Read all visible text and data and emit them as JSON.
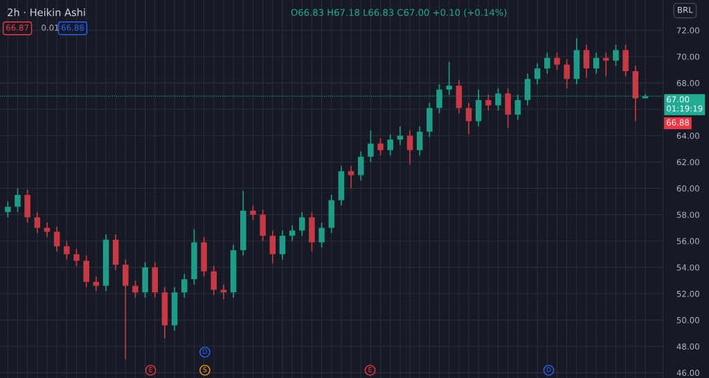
{
  "chart_data": {
    "type": "candlestick",
    "title": "2h · Heikin Ashi",
    "subtitle": "O66.83 H67.18 L66.83 C67.00 +0.10 (+0.14%)",
    "annotations": [
      "66.87",
      "0.01",
      "66.88",
      "BRL",
      "66.88",
      "E",
      "D",
      "S",
      "E",
      "D"
    ],
    "categories": [
      null,
      null,
      null,
      null,
      null,
      null,
      null,
      null,
      null,
      null,
      null,
      null,
      null,
      null,
      null,
      null,
      null,
      null,
      null,
      null,
      null,
      null,
      null,
      null,
      null,
      null,
      null,
      null,
      null,
      null,
      null,
      null,
      null,
      null,
      null,
      null,
      null,
      null,
      null,
      null,
      null,
      null,
      null,
      null,
      null,
      null,
      null,
      null,
      null,
      null,
      null,
      null,
      null,
      null,
      null,
      null,
      null,
      null,
      null,
      null,
      null,
      null,
      null,
      null,
      null,
      null
    ],
    "ohlc": [
      [
        58.2,
        59.0,
        57.8,
        58.6
      ],
      [
        58.6,
        60.0,
        58.2,
        59.5
      ],
      [
        59.5,
        59.9,
        57.4,
        57.8
      ],
      [
        57.8,
        58.2,
        56.6,
        57.0
      ],
      [
        57.0,
        57.4,
        56.3,
        56.7
      ],
      [
        56.7,
        57.1,
        55.2,
        55.6
      ],
      [
        55.6,
        56.0,
        54.6,
        55.0
      ],
      [
        55.0,
        55.4,
        54.1,
        54.5
      ],
      [
        54.5,
        54.9,
        52.5,
        52.9
      ],
      [
        52.9,
        53.3,
        52.2,
        52.6
      ],
      [
        52.6,
        56.5,
        52.2,
        56.1
      ],
      [
        56.1,
        56.5,
        53.8,
        54.2
      ],
      [
        54.2,
        54.6,
        47.0,
        52.6
      ],
      [
        52.6,
        53.0,
        51.7,
        52.1
      ],
      [
        52.1,
        54.4,
        51.7,
        54.0
      ],
      [
        54.0,
        54.4,
        51.7,
        52.1
      ],
      [
        52.1,
        52.5,
        48.6,
        49.6
      ],
      [
        49.6,
        52.5,
        49.2,
        52.1
      ],
      [
        52.1,
        53.5,
        51.7,
        53.1
      ],
      [
        53.1,
        56.9,
        52.7,
        55.9
      ],
      [
        55.9,
        56.3,
        53.3,
        53.7
      ],
      [
        53.7,
        54.1,
        51.9,
        52.3
      ],
      [
        52.3,
        52.7,
        51.6,
        52.1
      ],
      [
        52.1,
        55.7,
        51.7,
        55.3
      ],
      [
        55.3,
        59.8,
        54.9,
        58.3
      ],
      [
        58.3,
        58.7,
        57.6,
        58.0
      ],
      [
        58.0,
        58.4,
        56.0,
        56.4
      ],
      [
        56.4,
        56.8,
        54.3,
        55.0
      ],
      [
        55.0,
        56.8,
        54.6,
        56.4
      ],
      [
        56.4,
        57.2,
        56.0,
        56.8
      ],
      [
        56.8,
        58.2,
        56.4,
        57.8
      ],
      [
        57.8,
        58.2,
        55.2,
        55.9
      ],
      [
        55.9,
        57.4,
        55.5,
        57.0
      ],
      [
        57.0,
        59.5,
        56.6,
        59.1
      ],
      [
        59.1,
        61.7,
        58.7,
        61.3
      ],
      [
        61.3,
        61.7,
        60.0,
        61.0
      ],
      [
        61.0,
        62.8,
        60.6,
        62.4
      ],
      [
        62.4,
        64.4,
        62.0,
        63.4
      ],
      [
        63.4,
        63.8,
        62.5,
        62.9
      ],
      [
        62.9,
        64.1,
        62.5,
        63.7
      ],
      [
        63.7,
        64.7,
        63.3,
        64.0
      ],
      [
        64.0,
        64.4,
        61.8,
        62.9
      ],
      [
        62.9,
        64.7,
        62.5,
        64.3
      ],
      [
        64.3,
        66.5,
        63.9,
        66.1
      ],
      [
        66.1,
        67.9,
        65.7,
        67.5
      ],
      [
        67.5,
        69.6,
        67.1,
        67.8
      ],
      [
        67.8,
        68.2,
        65.7,
        66.1
      ],
      [
        66.1,
        66.5,
        64.1,
        65.1
      ],
      [
        65.1,
        67.5,
        64.7,
        66.7
      ],
      [
        66.7,
        67.1,
        65.9,
        66.3
      ],
      [
        66.3,
        67.6,
        65.9,
        67.2
      ],
      [
        67.2,
        67.6,
        64.6,
        65.6
      ],
      [
        65.6,
        67.1,
        65.2,
        66.7
      ],
      [
        66.7,
        68.7,
        66.3,
        68.3
      ],
      [
        68.3,
        69.5,
        67.9,
        69.1
      ],
      [
        69.1,
        70.3,
        68.7,
        69.9
      ],
      [
        69.9,
        70.3,
        69.0,
        69.4
      ],
      [
        69.4,
        69.8,
        67.6,
        68.3
      ],
      [
        68.3,
        71.4,
        67.9,
        70.5
      ],
      [
        70.5,
        70.9,
        68.4,
        69.1
      ],
      [
        69.1,
        70.3,
        68.7,
        69.9
      ],
      [
        69.9,
        70.3,
        68.5,
        69.7
      ],
      [
        69.7,
        70.9,
        69.3,
        70.5
      ],
      [
        70.5,
        70.9,
        68.5,
        68.9
      ],
      [
        68.9,
        69.3,
        65.1,
        66.83
      ],
      [
        66.83,
        67.18,
        66.83,
        67.0
      ]
    ],
    "colors": [
      "#1f9c87",
      "#1f9c87",
      "#c73a45",
      "#c73a45",
      "#c73a45",
      "#c73a45",
      "#c73a45",
      "#c73a45",
      "#c73a45",
      "#c73a45",
      "#1f9c87",
      "#c73a45",
      "#c73a45",
      "#c73a45",
      "#1f9c87",
      "#c73a45",
      "#c73a45",
      "#1f9c87",
      "#1f9c87",
      "#1f9c87",
      "#c73a45",
      "#c73a45",
      "#c73a45",
      "#1f9c87",
      "#1f9c87",
      "#c73a45",
      "#c73a45",
      "#c73a45",
      "#1f9c87",
      "#1f9c87",
      "#1f9c87",
      "#c73a45",
      "#1f9c87",
      "#1f9c87",
      "#1f9c87",
      "#c73a45",
      "#1f9c87",
      "#1f9c87",
      "#c73a45",
      "#1f9c87",
      "#1f9c87",
      "#c73a45",
      "#1f9c87",
      "#1f9c87",
      "#1f9c87",
      "#1f9c87",
      "#c73a45",
      "#c73a45",
      "#1f9c87",
      "#c73a45",
      "#1f9c87",
      "#c73a45",
      "#1f9c87",
      "#1f9c87",
      "#1f9c87",
      "#1f9c87",
      "#c73a45",
      "#c73a45",
      "#1f9c87",
      "#c73a45",
      "#1f9c87",
      "#c73a45",
      "#1f9c87",
      "#c73a45",
      "#c73a45",
      "#1f9c87"
    ],
    "ylim": [
      45.6,
      74.3
    ],
    "yticks": [
      {
        "value": 46,
        "label": "46.00"
      },
      {
        "value": 48,
        "label": "48.00"
      },
      {
        "value": 50,
        "label": "50.00"
      },
      {
        "value": 52,
        "label": "52.00"
      },
      {
        "value": 54,
        "label": "54.00"
      },
      {
        "value": 56,
        "label": "56.00"
      },
      {
        "value": 58,
        "label": "58.00"
      },
      {
        "value": 60,
        "label": "60.00"
      },
      {
        "value": 62,
        "label": "62.00"
      },
      {
        "value": 64,
        "label": "64.00"
      },
      {
        "value": 66,
        "label": null
      },
      {
        "value": 68,
        "label": "68.00"
      },
      {
        "value": 70,
        "label": "70.00"
      },
      {
        "value": 72,
        "label": "72.00"
      }
    ],
    "ref_lines": [
      {
        "axis": "y",
        "value": 67.0,
        "label": "67.00\n01:19:19",
        "color": "#22ab94",
        "line_style": "dotted"
      }
    ],
    "grid": true,
    "tick_labels": "y"
  }
}
